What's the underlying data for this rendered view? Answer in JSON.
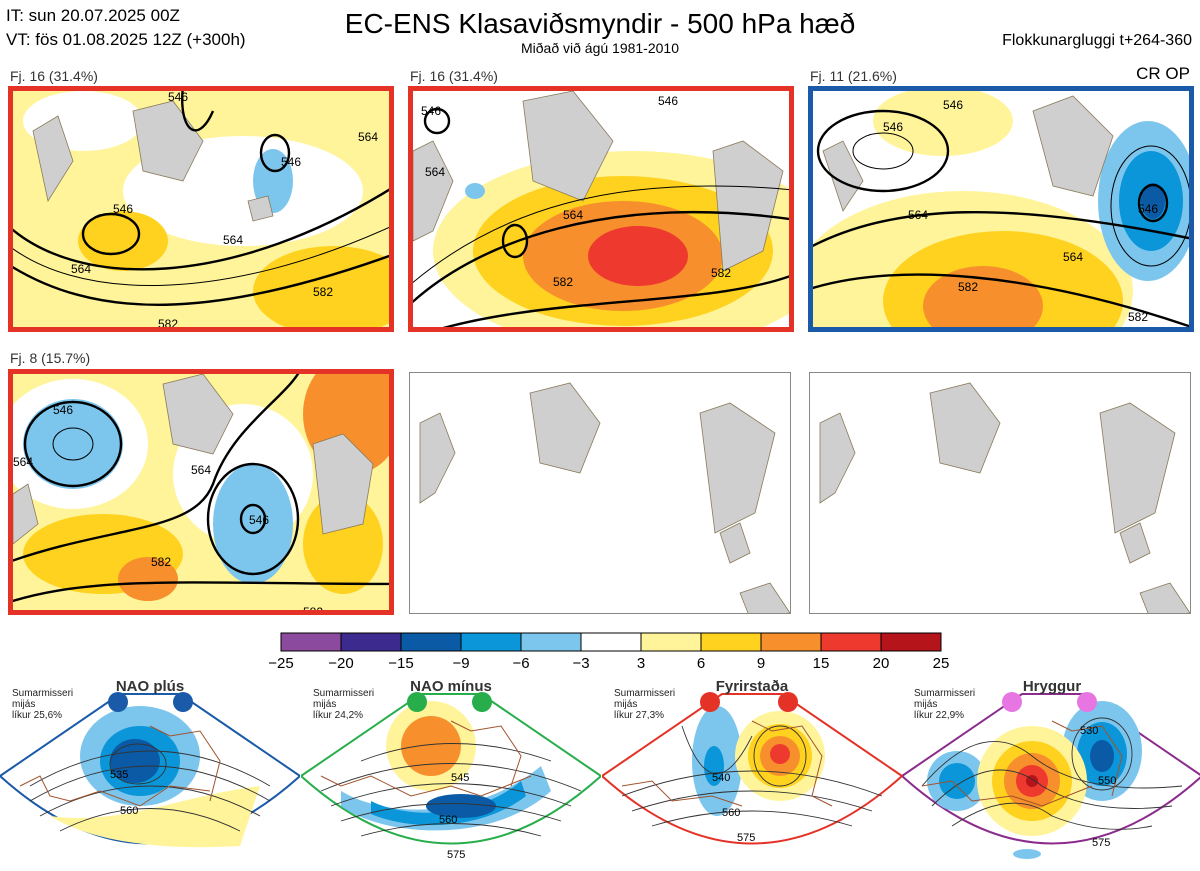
{
  "header": {
    "init_line": "IT: sun 20.07.2025 00Z",
    "valid_line": "VT: fös 01.08.2025 12Z  (+300h)",
    "title": "EC-ENS Klasaviðsmyndir - 500 hPa hæð",
    "subtitle": "Miðað við ágú 1981-2010",
    "window": "Flokkunargluggi t+264-360"
  },
  "cr_op_label": "CR OP",
  "panels": [
    {
      "label": "Fj. 16 (31.4%)",
      "border": "red",
      "contours": [
        "546",
        "546",
        "546",
        "564",
        "564",
        "564",
        "582",
        "582"
      ]
    },
    {
      "label": "Fj. 16 (31.4%)",
      "border": "red",
      "contours": [
        "546",
        "546",
        "564",
        "564",
        "582",
        "582"
      ]
    },
    {
      "label": "Fj. 11 (21.6%)",
      "border": "blue",
      "contours": [
        "546",
        "546",
        "546",
        "564",
        "564",
        "582",
        "582"
      ]
    },
    {
      "label": "Fj. 8 (15.7%)",
      "border": "red",
      "contours": [
        "546",
        "546",
        "564",
        "564",
        "582",
        "582"
      ]
    },
    {
      "label": "",
      "border": "none",
      "contours": []
    },
    {
      "label": "",
      "border": "none",
      "contours": []
    }
  ],
  "colorbar": {
    "ticks": [
      "−25",
      "−20",
      "−15",
      "−9",
      "−6",
      "−3",
      "3",
      "6",
      "9",
      "15",
      "20",
      "25"
    ],
    "colors": [
      "#8b4a9e",
      "#3d2a8f",
      "#0a5aa6",
      "#0a96d8",
      "#7cc6ee",
      "#ffffff",
      "#fff49a",
      "#ffd21f",
      "#f7902c",
      "#ee3a2e",
      "#b4141a"
    ]
  },
  "regimes": [
    {
      "name": "NAO plús",
      "season": "Sumarmisseri",
      "subset": "mijás",
      "prob": "líkur 25,6%",
      "dot_color": "#1a5aa8",
      "contours": [
        "535",
        "560"
      ]
    },
    {
      "name": "NAO mínus",
      "season": "Sumarmisseri",
      "subset": "mijás",
      "prob": "líkur 24,2%",
      "dot_color": "#27ae4b",
      "contours": [
        "545",
        "560",
        "575"
      ]
    },
    {
      "name": "Fyrirstaða",
      "season": "Sumarmisseri",
      "subset": "mijás",
      "prob": "líkur 27,3%",
      "dot_color": "#e53226",
      "contours": [
        "540",
        "560",
        "575"
      ]
    },
    {
      "name": "Hryggur",
      "season": "Sumarmisseri",
      "subset": "mijás",
      "prob": "líkur 22,9%",
      "dot_color": "#e776e3",
      "contours": [
        "530",
        "550",
        "575"
      ]
    }
  ],
  "chart_data": {
    "type": "heatmap",
    "title": "EC-ENS Klasaviðsmyndir - 500 hPa hæð",
    "subtitle": "Miðað við ágú 1981-2010",
    "variable": "500 hPa geopotential height anomaly",
    "colorbar_range": [
      -25,
      25
    ],
    "colorbar_bounds": [
      -25,
      -20,
      -15,
      -9,
      -6,
      -3,
      3,
      6,
      9,
      15,
      20,
      25
    ],
    "clusters": [
      {
        "label": "Fj. 16 (31.4%)",
        "members": 16,
        "probability": 31.4,
        "contour_levels": [
          546,
          564,
          582
        ]
      },
      {
        "label": "Fj. 16 (31.4%)",
        "members": 16,
        "probability": 31.4,
        "contour_levels": [
          546,
          564,
          582
        ]
      },
      {
        "label": "Fj. 11 (21.6%)",
        "members": 11,
        "probability": 21.6,
        "contour_levels": [
          546,
          564,
          582
        ]
      },
      {
        "label": "Fj. 8 (15.7%)",
        "members": 8,
        "probability": 15.7,
        "contour_levels": [
          546,
          564,
          582
        ]
      }
    ],
    "regimes": [
      {
        "name": "NAO plús",
        "probability": 25.6
      },
      {
        "name": "NAO mínus",
        "probability": 24.2
      },
      {
        "name": "Fyrirstaða",
        "probability": 27.3
      },
      {
        "name": "Hryggur",
        "probability": 22.9
      }
    ]
  }
}
